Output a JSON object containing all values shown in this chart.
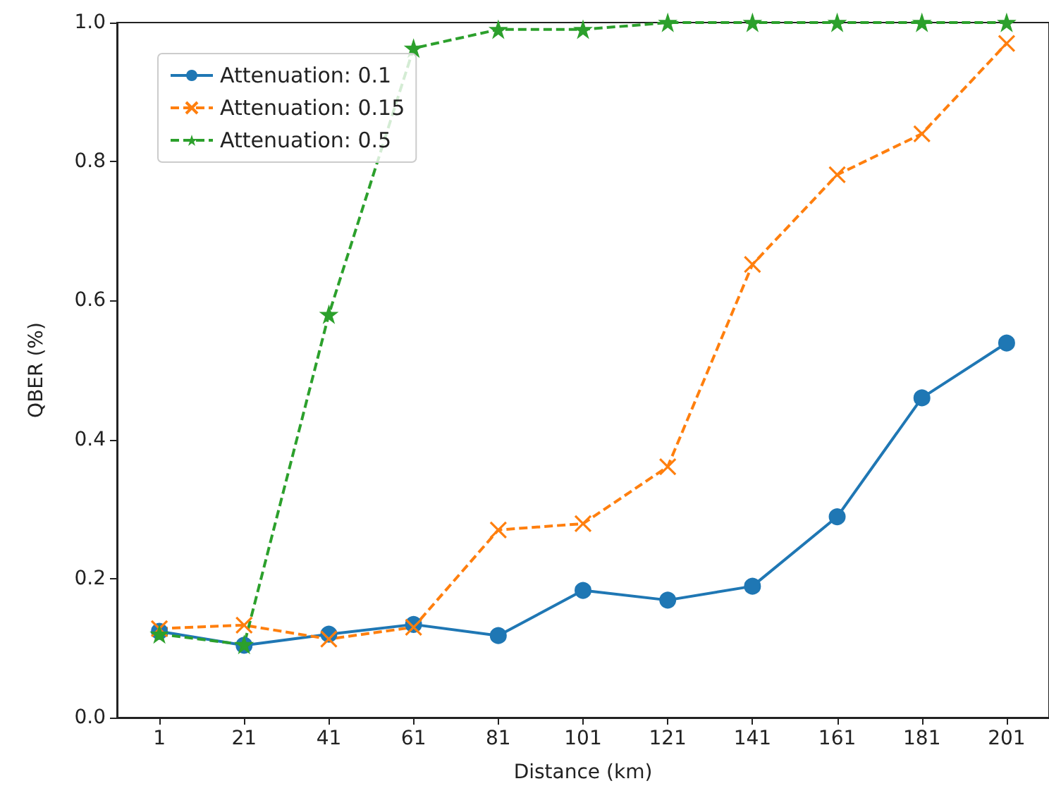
{
  "chart_data": {
    "type": "line",
    "xlabel": "Distance (km)",
    "ylabel": "QBER (%)",
    "x": [
      1,
      21,
      41,
      61,
      81,
      101,
      121,
      141,
      161,
      181,
      201
    ],
    "xlim": [
      -9,
      211
    ],
    "xticks": [
      1,
      21,
      41,
      61,
      81,
      101,
      121,
      141,
      161,
      181,
      201
    ],
    "ylim": [
      0,
      1
    ],
    "yticks": [
      {
        "value": 0,
        "label": "0.0"
      },
      0.2,
      0.4,
      0.6,
      0.8,
      {
        "value": 1,
        "label": "1.0"
      }
    ],
    "grid": false,
    "legend": "top left",
    "series": [
      {
        "name": "Attenuation: 0.1",
        "color": "#1f77b4",
        "marker": "circle",
        "line_style": "solid",
        "values": [
          0.124,
          0.104,
          0.12,
          0.134,
          0.118,
          0.183,
          0.169,
          0.189,
          0.289,
          0.46,
          0.539
        ]
      },
      {
        "name": "Attenuation: 0.15",
        "color": "#ff7f0e",
        "marker": "cross",
        "line_style": "dashed",
        "values": [
          0.128,
          0.133,
          0.113,
          0.13,
          0.27,
          0.279,
          0.361,
          0.652,
          0.781,
          0.84,
          0.97
        ]
      },
      {
        "name": "Attenuation: 0.5",
        "color": "#2ca02c",
        "marker": "star",
        "line_style": "dashed",
        "values": [
          0.12,
          0.105,
          0.58,
          0.963,
          0.99,
          0.99,
          1.0,
          1.0,
          1.0,
          1.0,
          1.0
        ]
      }
    ]
  }
}
